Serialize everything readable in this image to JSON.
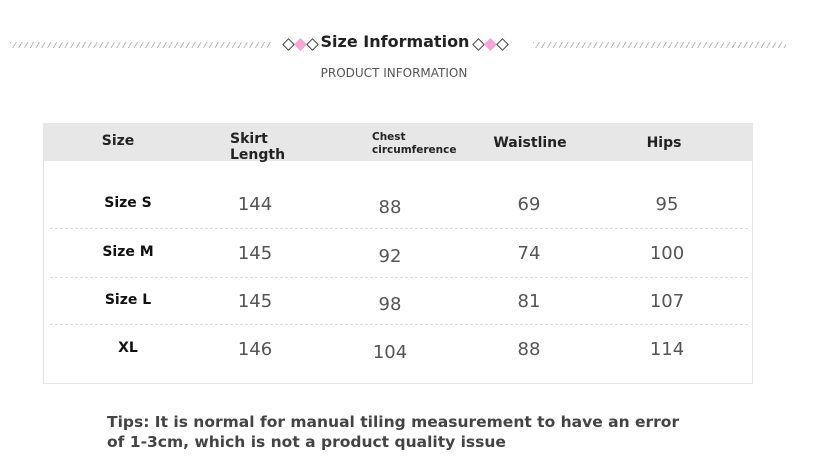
{
  "header": {
    "title": "Size Information",
    "subtitle": "PRODUCT INFORMATION"
  },
  "table": {
    "columns": [
      "Size",
      "Skirt Length",
      "Chest circumference",
      "Waistline",
      "Hips"
    ],
    "rows": [
      [
        "Size S",
        144,
        88,
        69,
        95
      ],
      [
        "Size M",
        145,
        92,
        74,
        100
      ],
      [
        "Size L",
        145,
        98,
        81,
        107
      ],
      [
        "XL",
        146,
        104,
        88,
        114
      ]
    ]
  },
  "tips": "Tips: It is normal for manual tiling measurement to have an error of 1-3cm, which is not a product quality issue"
}
